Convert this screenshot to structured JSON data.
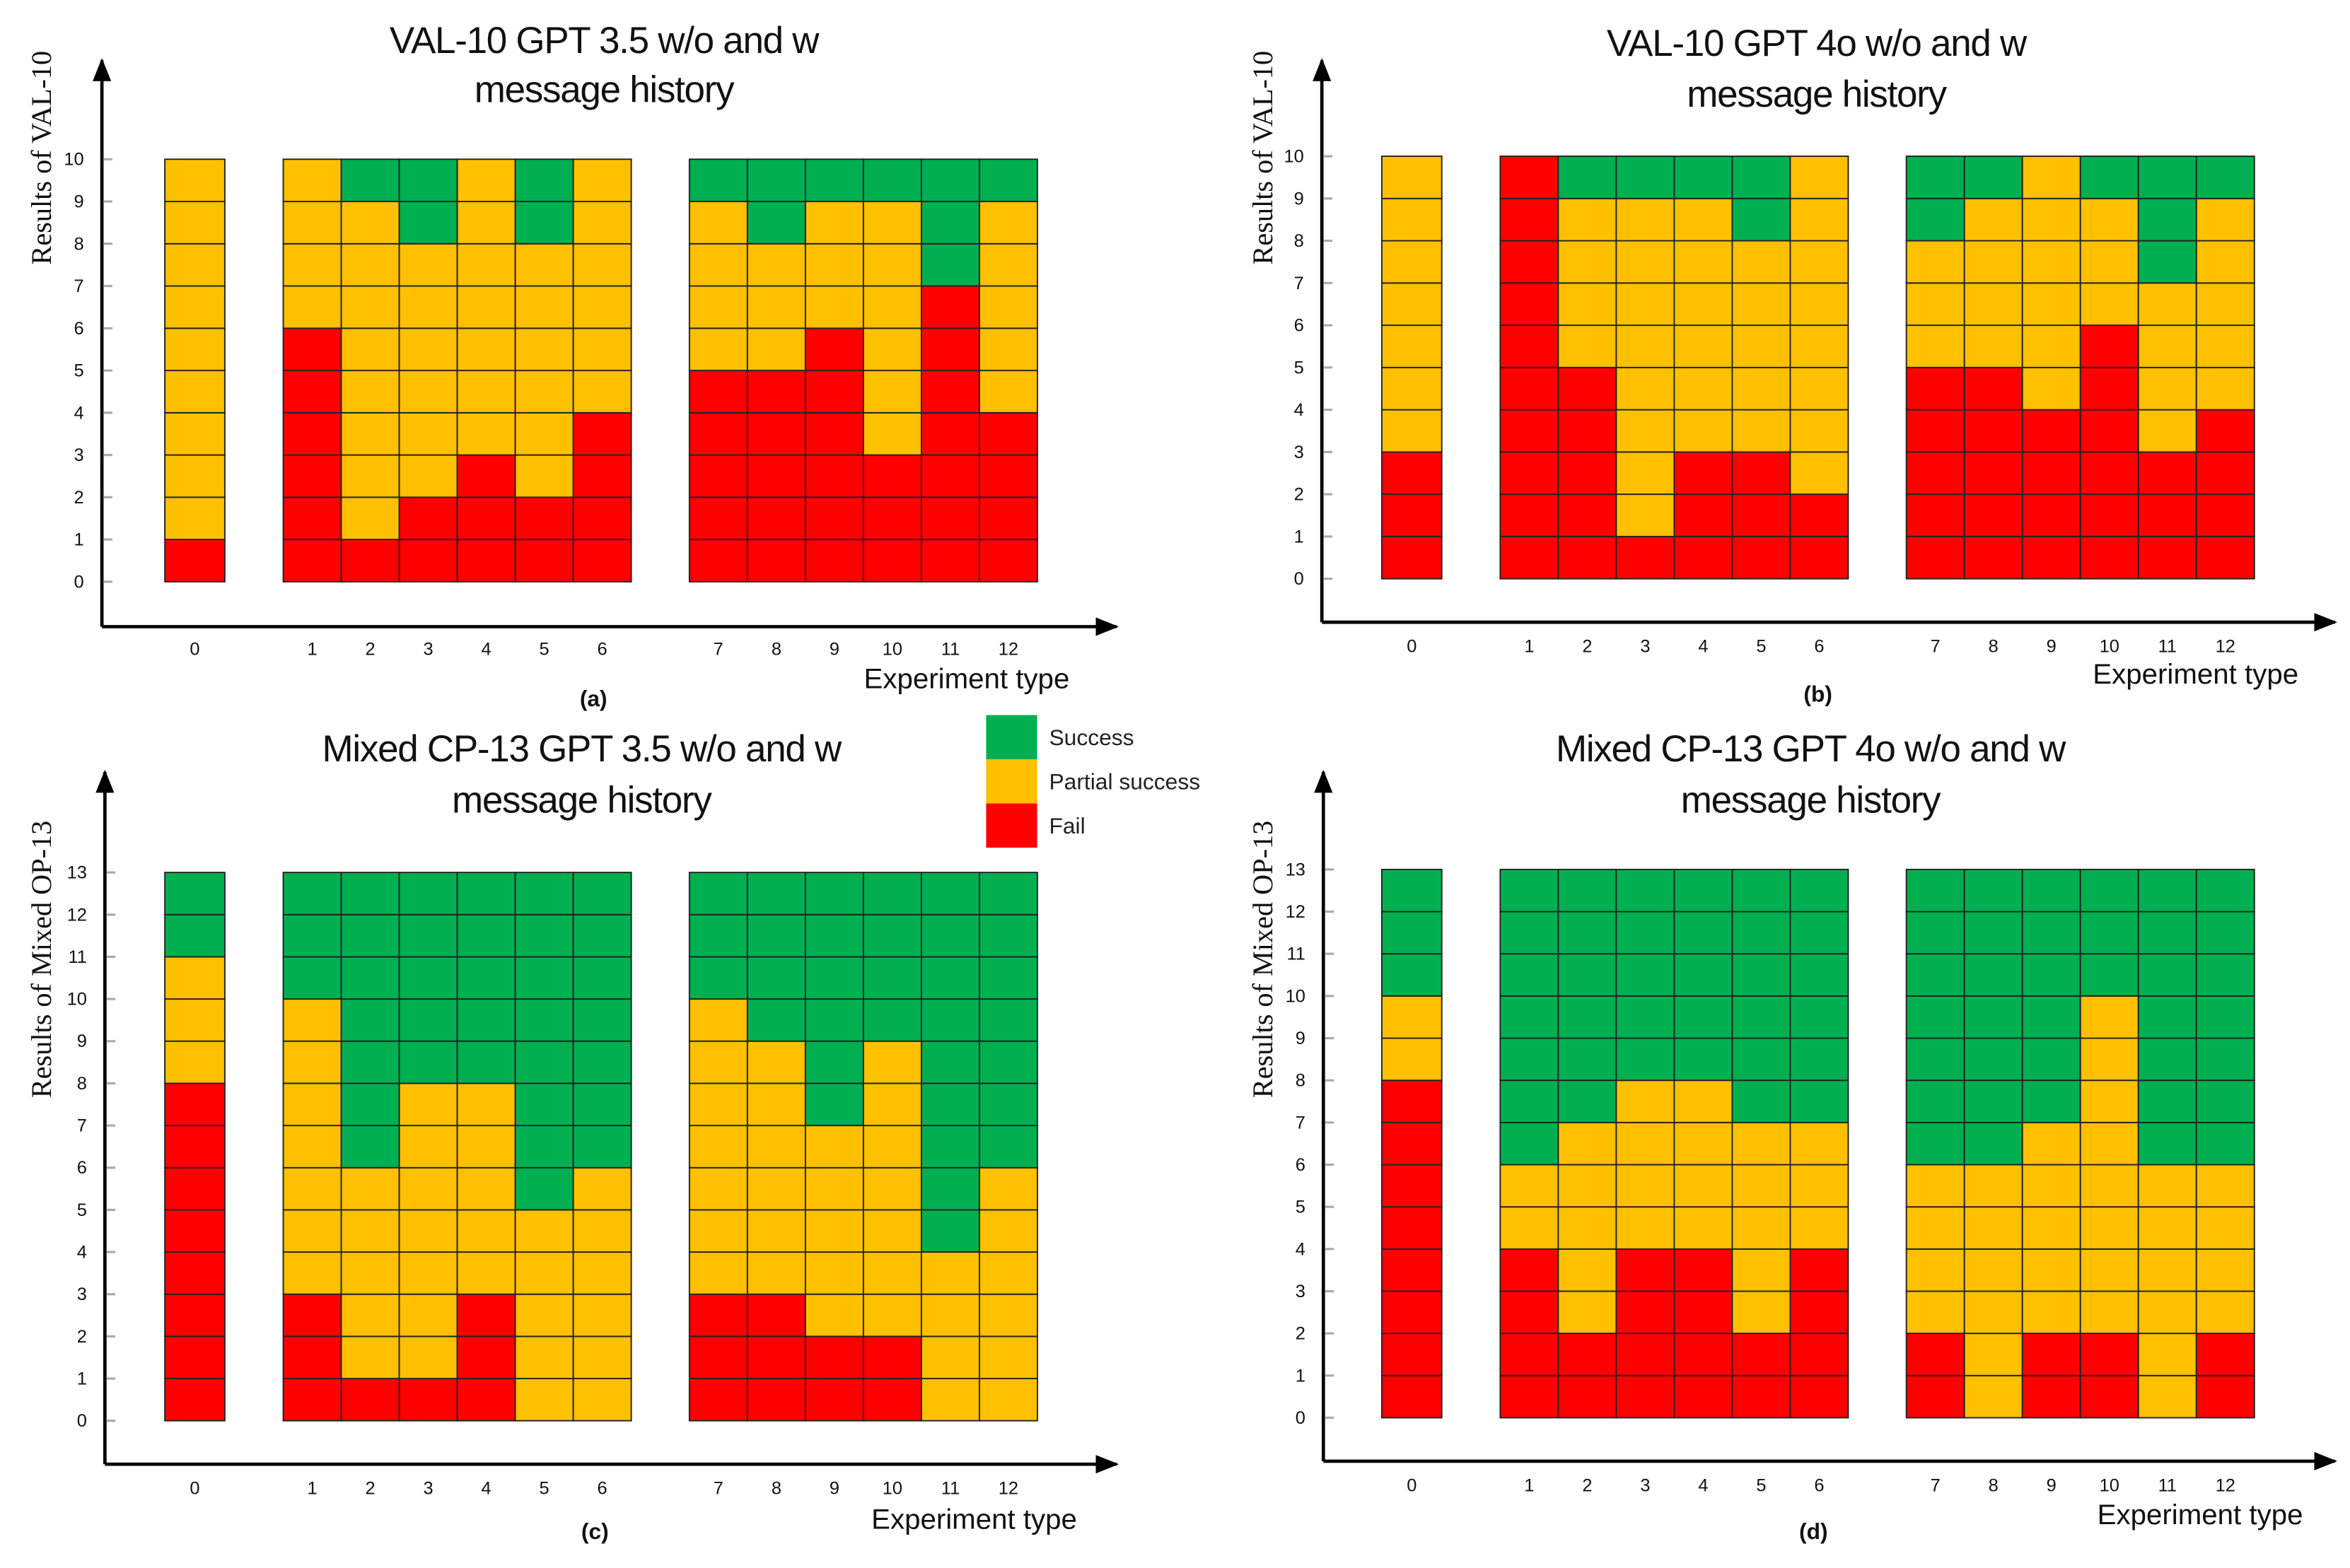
{
  "legend": {
    "items": [
      {
        "label": "Success",
        "color": "#00B050"
      },
      {
        "label": "Partial success",
        "color": "#FFC000"
      },
      {
        "label": "Fail",
        "color": "#FF0000"
      }
    ]
  },
  "chart_data": [
    {
      "type": "bar",
      "stacked": true,
      "panel_label": "(a)",
      "title": [
        "VAL-10 GPT 3.5 w/o and w",
        "message history"
      ],
      "ylabel": "Results of VAL-10",
      "xlabel": "Experiment type",
      "ylim": [
        0,
        10
      ],
      "yticks": [
        0,
        1,
        2,
        3,
        4,
        5,
        6,
        7,
        8,
        9,
        10
      ],
      "categories": [
        "0",
        "1",
        "2",
        "3",
        "4",
        "5",
        "6",
        "7",
        "8",
        "9",
        "10",
        "11",
        "12"
      ],
      "series": [
        {
          "name": "Fail",
          "values": [
            1,
            6,
            1,
            2,
            3,
            2,
            4,
            5,
            5,
            6,
            3,
            7,
            4
          ]
        },
        {
          "name": "Partial success",
          "values": [
            9,
            4,
            8,
            6,
            7,
            6,
            6,
            4,
            3,
            3,
            6,
            0,
            5
          ]
        },
        {
          "name": "Success",
          "values": [
            0,
            0,
            1,
            2,
            0,
            2,
            0,
            1,
            2,
            1,
            1,
            3,
            1
          ]
        }
      ]
    },
    {
      "type": "bar",
      "stacked": true,
      "panel_label": "(b)",
      "title": [
        "VAL-10 GPT 4o w/o and w",
        "message history"
      ],
      "ylabel": "Results of VAL-10",
      "xlabel": "Experiment type",
      "ylim": [
        0,
        10
      ],
      "yticks": [
        0,
        1,
        2,
        3,
        4,
        5,
        6,
        7,
        8,
        9,
        10
      ],
      "categories": [
        "0",
        "1",
        "2",
        "3",
        "4",
        "5",
        "6",
        "7",
        "8",
        "9",
        "10",
        "11",
        "12"
      ],
      "series": [
        {
          "name": "Fail",
          "values": [
            3,
            10,
            5,
            1,
            3,
            3,
            2,
            5,
            5,
            4,
            6,
            3,
            4
          ]
        },
        {
          "name": "Partial success",
          "values": [
            7,
            0,
            4,
            8,
            6,
            5,
            8,
            3,
            4,
            6,
            3,
            4,
            5
          ]
        },
        {
          "name": "Success",
          "values": [
            0,
            0,
            1,
            1,
            1,
            2,
            0,
            2,
            1,
            0,
            1,
            3,
            1
          ]
        }
      ]
    },
    {
      "type": "bar",
      "stacked": true,
      "panel_label": "(c)",
      "title": [
        "Mixed CP-13 GPT 3.5 w/o and w",
        "message history"
      ],
      "ylabel": "Results of Mixed OP-13",
      "xlabel": "Experiment type",
      "ylim": [
        0,
        13
      ],
      "yticks": [
        0,
        1,
        2,
        3,
        4,
        5,
        6,
        7,
        8,
        9,
        10,
        11,
        12,
        13
      ],
      "categories": [
        "0",
        "1",
        "2",
        "3",
        "4",
        "5",
        "6",
        "7",
        "8",
        "9",
        "10",
        "11",
        "12"
      ],
      "series": [
        {
          "name": "Fail",
          "values": [
            8,
            3,
            1,
            1,
            3,
            0,
            0,
            3,
            3,
            2,
            2,
            0,
            0
          ]
        },
        {
          "name": "Partial success",
          "values": [
            3,
            7,
            5,
            7,
            5,
            5,
            6,
            7,
            6,
            5,
            7,
            4,
            6
          ]
        },
        {
          "name": "Success",
          "values": [
            2,
            3,
            7,
            5,
            5,
            8,
            7,
            3,
            4,
            6,
            4,
            9,
            7
          ]
        }
      ]
    },
    {
      "type": "bar",
      "stacked": true,
      "panel_label": "(d)",
      "title": [
        "Mixed CP-13 GPT 4o w/o and w",
        "message history"
      ],
      "ylabel": "Results of Mixed OP-13",
      "xlabel": "Experiment type",
      "ylim": [
        0,
        13
      ],
      "yticks": [
        0,
        1,
        2,
        3,
        4,
        5,
        6,
        7,
        8,
        9,
        10,
        11,
        12,
        13
      ],
      "categories": [
        "0",
        "1",
        "2",
        "3",
        "4",
        "5",
        "6",
        "7",
        "8",
        "9",
        "10",
        "11",
        "12"
      ],
      "series": [
        {
          "name": "Fail",
          "values": [
            8,
            4,
            2,
            4,
            4,
            2,
            4,
            2,
            0,
            2,
            2,
            0,
            2
          ]
        },
        {
          "name": "Partial success",
          "values": [
            2,
            2,
            5,
            4,
            4,
            5,
            3,
            4,
            6,
            5,
            8,
            6,
            4
          ]
        },
        {
          "name": "Success",
          "values": [
            3,
            7,
            6,
            5,
            5,
            6,
            6,
            7,
            7,
            6,
            3,
            7,
            7
          ]
        }
      ]
    }
  ]
}
